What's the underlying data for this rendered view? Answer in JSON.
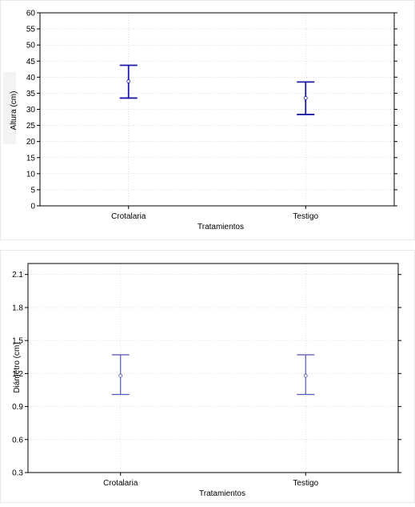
{
  "chart_data": [
    {
      "type": "errorbar",
      "title": "",
      "xlabel": "Tratamientos",
      "ylabel": "Altura (cm)",
      "categories": [
        "Crotalaria",
        "Testigo"
      ],
      "series": [
        {
          "mean": [
            38.7,
            33.5
          ],
          "lower": [
            33.5,
            28.4
          ],
          "upper": [
            43.7,
            38.5
          ]
        }
      ],
      "ylim": [
        0,
        60
      ],
      "yticks": [
        0,
        5,
        10,
        15,
        20,
        25,
        30,
        35,
        40,
        45,
        50,
        55,
        60
      ],
      "grid": true,
      "color": "#1a1aa6"
    },
    {
      "type": "errorbar",
      "title": "",
      "xlabel": "Tratamientos",
      "ylabel": "Diámetro (cm)",
      "categories": [
        "Crotalaria",
        "Testigo"
      ],
      "series": [
        {
          "mean": [
            1.18,
            1.18
          ],
          "lower": [
            1.01,
            1.01
          ],
          "upper": [
            1.37,
            1.37
          ]
        }
      ],
      "ylim": [
        0.3,
        2.2
      ],
      "yticks": [
        "0.3",
        "0.6",
        "0.9",
        "1.2",
        "1.5",
        "1.8",
        "2.1"
      ],
      "grid": true,
      "color": "#5555bb"
    }
  ]
}
